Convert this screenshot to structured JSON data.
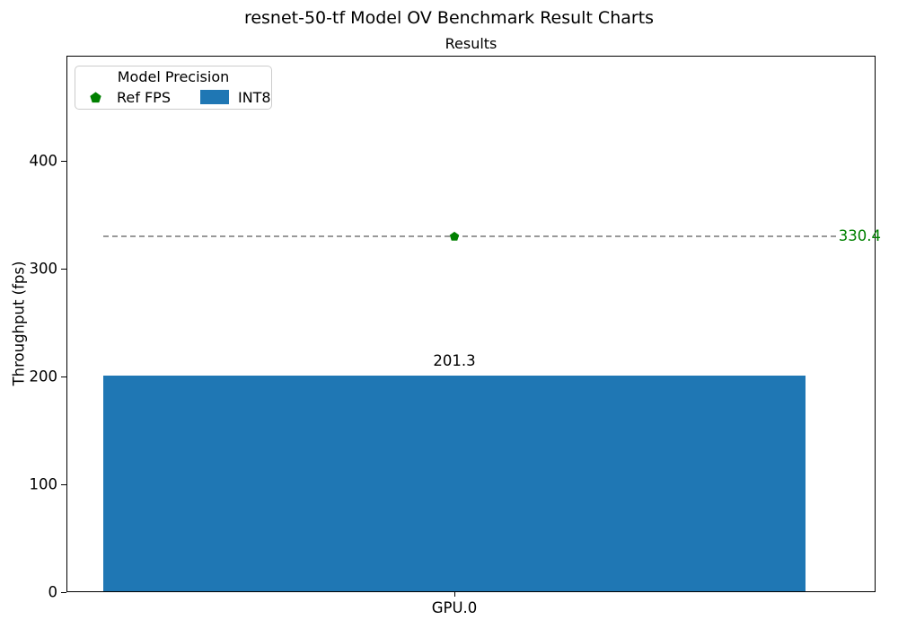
{
  "figure": {
    "title": "resnet-50-tf Model OV Benchmark Result Charts"
  },
  "chart_data": {
    "type": "bar",
    "title": "Results",
    "ylabel": "Throughput (fps)",
    "xlabel": "",
    "categories": [
      "GPU.0"
    ],
    "series": [
      {
        "name": "INT8",
        "role": "bar",
        "values": [
          201.3
        ],
        "color": "#1f77b4"
      },
      {
        "name": "Ref FPS",
        "role": "reference-line",
        "values": [
          330.4
        ],
        "color": "#008000",
        "line_color": "#999999",
        "line_style": "dashed",
        "marker": "pentagon"
      }
    ],
    "ylim": [
      0,
      498
    ],
    "yticks": [
      0,
      100,
      200,
      300,
      400
    ],
    "grid": false,
    "legend": {
      "title": "Model Precision",
      "position": "upper-left",
      "entries": [
        {
          "label": "Ref FPS",
          "marker": "pentagon",
          "color": "#008000"
        },
        {
          "label": "INT8",
          "marker": "rect",
          "color": "#1f77b4"
        }
      ]
    }
  }
}
